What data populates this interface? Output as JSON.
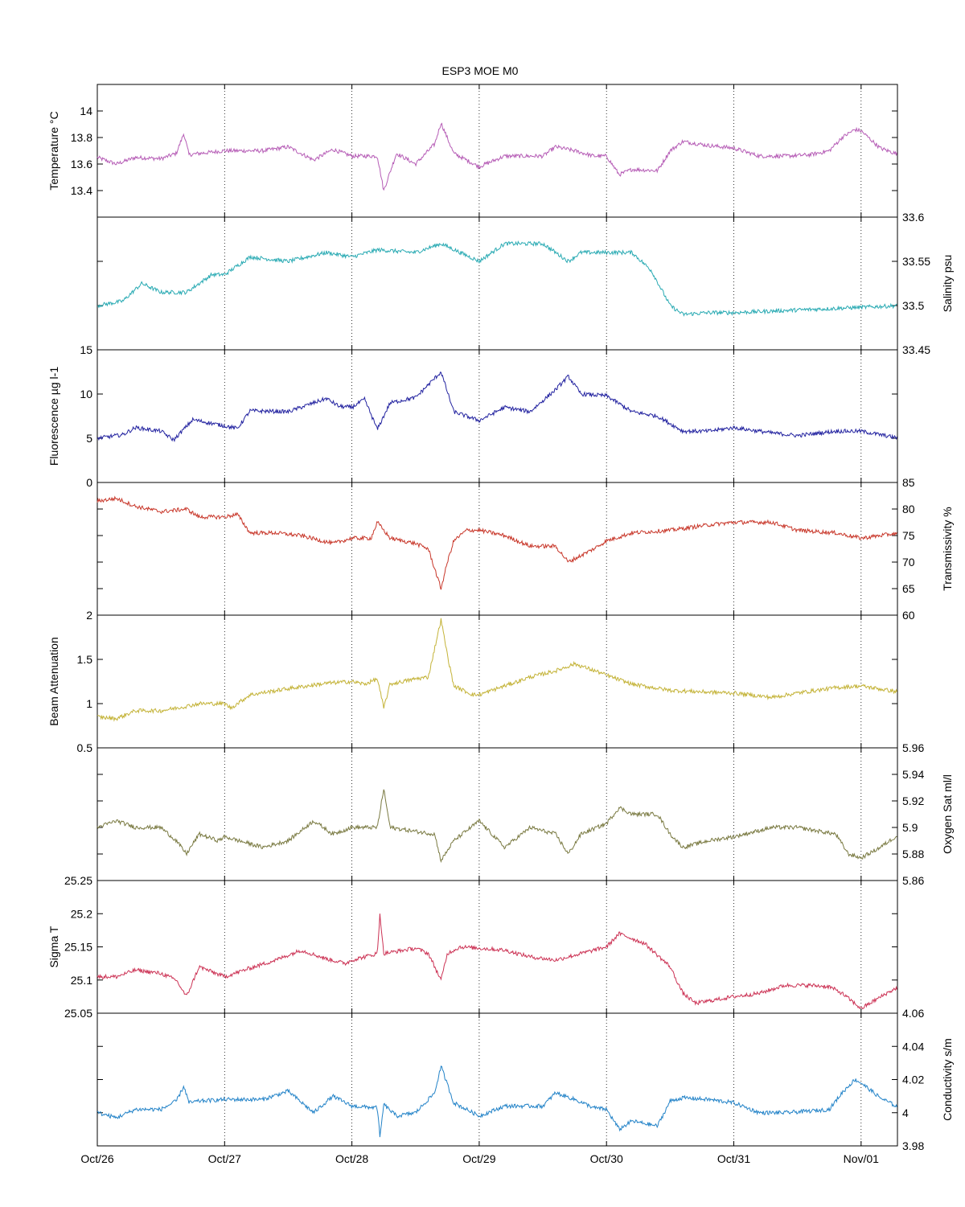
{
  "figure": {
    "title": "ESP3 MOE   M0",
    "x_ticks": [
      "Oct/26",
      "Oct/27",
      "Oct/28",
      "Oct/29",
      "Oct/30",
      "Oct/31",
      "Nov/01"
    ]
  },
  "chart_data": [
    {
      "type": "line",
      "side": "left",
      "ylabel": "Temperature °C",
      "ylim": [
        13.2,
        14.2
      ],
      "yticks": [
        13.4,
        13.6,
        13.8,
        14
      ],
      "ytick_labels": [
        "13.4",
        "13.6",
        "13.8",
        "14"
      ],
      "color": "#b65db6",
      "x_days": [
        0,
        0.15,
        0.3,
        0.5,
        0.62,
        0.68,
        0.72,
        0.8,
        1.0,
        1.3,
        1.5,
        1.7,
        1.85,
        2.0,
        2.2,
        2.25,
        2.35,
        2.5,
        2.65,
        2.7,
        2.8,
        3.0,
        3.2,
        3.4,
        3.5,
        3.6,
        3.75,
        3.9,
        4.0,
        4.1,
        4.2,
        4.4,
        4.5,
        4.6,
        4.8,
        5.0,
        5.2,
        5.4,
        5.6,
        5.75,
        5.85,
        5.95,
        6.0,
        6.15,
        6.3
      ],
      "y": [
        13.65,
        13.6,
        13.65,
        13.64,
        13.68,
        13.83,
        13.67,
        13.68,
        13.7,
        13.7,
        13.73,
        13.63,
        13.71,
        13.66,
        13.66,
        13.4,
        13.68,
        13.6,
        13.75,
        13.91,
        13.68,
        13.58,
        13.66,
        13.66,
        13.66,
        13.73,
        13.7,
        13.66,
        13.66,
        13.52,
        13.56,
        13.55,
        13.7,
        13.77,
        13.74,
        13.72,
        13.66,
        13.66,
        13.67,
        13.7,
        13.8,
        13.86,
        13.85,
        13.72,
        13.67
      ]
    },
    {
      "type": "line",
      "side": "right",
      "ylabel": "Salinity psu",
      "ylim": [
        33.45,
        33.6
      ],
      "yticks": [
        33.45,
        33.5,
        33.55,
        33.6
      ],
      "ytick_labels": [
        "33.45",
        "33.5",
        "33.55",
        "33.6"
      ],
      "color": "#29aab3",
      "x_days": [
        0,
        0.2,
        0.35,
        0.5,
        0.7,
        0.9,
        1.0,
        1.2,
        1.5,
        1.8,
        2.0,
        2.2,
        2.5,
        2.7,
        2.85,
        3.0,
        3.2,
        3.5,
        3.7,
        3.8,
        4.0,
        4.2,
        4.35,
        4.5,
        4.6,
        4.8,
        5.0,
        5.5,
        6.0,
        6.3
      ],
      "y": [
        33.5,
        33.505,
        33.525,
        33.515,
        33.515,
        33.535,
        33.535,
        33.555,
        33.55,
        33.56,
        33.555,
        33.563,
        33.56,
        33.57,
        33.56,
        33.55,
        33.57,
        33.57,
        33.55,
        33.56,
        33.56,
        33.56,
        33.54,
        33.5,
        33.49,
        33.492,
        33.492,
        33.495,
        33.498,
        33.5
      ]
    },
    {
      "type": "line",
      "side": "left",
      "ylabel": "Fluorescence µg l-1",
      "ylim": [
        0,
        15
      ],
      "yticks": [
        0,
        5,
        10,
        15
      ],
      "ytick_labels": [
        "0",
        "5",
        "10",
        "15"
      ],
      "color": "#2323a0",
      "x_days": [
        0,
        0.2,
        0.3,
        0.5,
        0.6,
        0.75,
        1.0,
        1.1,
        1.2,
        1.5,
        1.8,
        1.9,
        2.0,
        2.1,
        2.2,
        2.3,
        2.5,
        2.7,
        2.8,
        3.0,
        3.2,
        3.4,
        3.6,
        3.7,
        3.8,
        4.0,
        4.2,
        4.4,
        4.6,
        4.8,
        5.0,
        5.3,
        5.5,
        5.8,
        6.0,
        6.3
      ],
      "y": [
        5,
        5.4,
        6.2,
        5.8,
        4.8,
        7.1,
        6.4,
        6.1,
        8.1,
        8.0,
        9.5,
        8.6,
        8.5,
        9.4,
        6.0,
        9.0,
        9.6,
        12.5,
        8.0,
        7.0,
        8.5,
        8.0,
        10.5,
        12.0,
        10.0,
        9.8,
        8.0,
        7.5,
        5.8,
        5.8,
        6.2,
        5.6,
        5.3,
        5.8,
        5.8,
        5.0
      ]
    },
    {
      "type": "line",
      "side": "right",
      "ylabel": "Transmissivity %",
      "ylim": [
        60,
        85
      ],
      "yticks": [
        60,
        65,
        70,
        75,
        80,
        85
      ],
      "ytick_labels": [
        "60",
        "65",
        "70",
        "75",
        "80",
        "85"
      ],
      "color": "#c8372a",
      "x_days": [
        0,
        0.15,
        0.3,
        0.5,
        0.7,
        0.8,
        1.0,
        1.1,
        1.2,
        1.4,
        1.6,
        1.85,
        2.0,
        2.15,
        2.2,
        2.3,
        2.5,
        2.6,
        2.7,
        2.75,
        2.8,
        2.9,
        3.0,
        3.2,
        3.4,
        3.6,
        3.7,
        3.9,
        4.0,
        4.2,
        4.5,
        4.8,
        5.0,
        5.3,
        5.5,
        5.8,
        6.0,
        6.3
      ],
      "y": [
        81.5,
        82,
        80.5,
        79.5,
        80,
        78.5,
        78.5,
        79,
        75.5,
        75.5,
        75,
        73.5,
        74.5,
        74.5,
        77.5,
        74.5,
        73.5,
        72.5,
        65,
        70,
        74,
        76,
        76,
        75,
        73,
        73,
        70,
        72.5,
        74,
        75.5,
        76,
        77,
        77.5,
        77.5,
        76,
        75.5,
        74.5,
        75.5
      ]
    },
    {
      "type": "line",
      "side": "left",
      "ylabel": "Beam Attenuation",
      "ylim": [
        0.5,
        2
      ],
      "yticks": [
        0.5,
        1,
        1.5,
        2
      ],
      "ytick_labels": [
        "0.5",
        "1",
        "1.5",
        "2"
      ],
      "color": "#c4b338",
      "x_days": [
        0,
        0.15,
        0.3,
        0.5,
        0.7,
        0.8,
        1.0,
        1.05,
        1.2,
        1.5,
        1.8,
        2.0,
        2.1,
        2.2,
        2.25,
        2.3,
        2.5,
        2.6,
        2.7,
        2.75,
        2.8,
        2.95,
        3.0,
        3.2,
        3.4,
        3.6,
        3.75,
        3.95,
        4.0,
        4.2,
        4.5,
        4.8,
        5.0,
        5.3,
        5.5,
        5.8,
        6.0,
        6.3
      ],
      "y": [
        0.85,
        0.83,
        0.92,
        0.92,
        0.97,
        1.0,
        1.0,
        0.95,
        1.1,
        1.17,
        1.23,
        1.25,
        1.22,
        1.28,
        0.95,
        1.22,
        1.28,
        1.3,
        1.95,
        1.55,
        1.2,
        1.1,
        1.1,
        1.2,
        1.3,
        1.37,
        1.45,
        1.35,
        1.32,
        1.22,
        1.15,
        1.13,
        1.12,
        1.07,
        1.12,
        1.18,
        1.2,
        1.13
      ]
    },
    {
      "type": "line",
      "side": "right",
      "ylabel": "Oxygen Sat ml/l",
      "ylim": [
        5.86,
        5.96
      ],
      "yticks": [
        5.86,
        5.88,
        5.9,
        5.92,
        5.94,
        5.96
      ],
      "ytick_labels": [
        "5.86",
        "5.88",
        "5.9",
        "5.92",
        "5.94",
        "5.96"
      ],
      "color": "#7a7a42",
      "x_days": [
        0,
        0.15,
        0.3,
        0.5,
        0.62,
        0.7,
        0.8,
        0.95,
        1.0,
        1.3,
        1.5,
        1.7,
        1.85,
        2.0,
        2.2,
        2.25,
        2.3,
        2.5,
        2.65,
        2.7,
        2.8,
        3.0,
        3.2,
        3.4,
        3.6,
        3.7,
        3.8,
        4.0,
        4.1,
        4.2,
        4.4,
        4.5,
        4.6,
        4.8,
        5.0,
        5.3,
        5.5,
        5.8,
        5.9,
        6.0,
        6.15,
        6.3
      ],
      "y": [
        5.9,
        5.905,
        5.9,
        5.9,
        5.89,
        5.88,
        5.895,
        5.89,
        5.893,
        5.885,
        5.89,
        5.905,
        5.895,
        5.9,
        5.9,
        5.929,
        5.9,
        5.897,
        5.895,
        5.875,
        5.89,
        5.905,
        5.885,
        5.9,
        5.895,
        5.88,
        5.895,
        5.903,
        5.915,
        5.91,
        5.91,
        5.895,
        5.885,
        5.89,
        5.893,
        5.9,
        5.9,
        5.895,
        5.88,
        5.877,
        5.885,
        5.895
      ]
    },
    {
      "type": "line",
      "side": "left",
      "ylabel": "Sigma T",
      "ylim": [
        25.05,
        25.25
      ],
      "yticks": [
        25.05,
        25.1,
        25.15,
        25.2,
        25.25
      ],
      "ytick_labels": [
        "25.05",
        "25.1",
        "25.15",
        "25.2",
        "25.25"
      ],
      "color": "#cc3355",
      "x_days": [
        0,
        0.15,
        0.3,
        0.5,
        0.62,
        0.7,
        0.8,
        1.0,
        1.2,
        1.4,
        1.6,
        1.8,
        1.95,
        2.0,
        2.2,
        2.22,
        2.25,
        2.5,
        2.6,
        2.7,
        2.75,
        2.85,
        3.0,
        3.2,
        3.4,
        3.6,
        3.8,
        4.0,
        4.1,
        4.3,
        4.5,
        4.6,
        4.7,
        5.0,
        5.2,
        5.4,
        5.6,
        5.75,
        5.85,
        6.0,
        6.2,
        6.3
      ],
      "y": [
        25.105,
        25.105,
        25.115,
        25.11,
        25.1,
        25.075,
        25.12,
        25.105,
        25.118,
        25.13,
        25.145,
        25.132,
        25.125,
        25.13,
        25.14,
        25.2,
        25.14,
        25.148,
        25.14,
        25.1,
        25.14,
        25.15,
        25.148,
        25.145,
        25.135,
        25.13,
        25.14,
        25.15,
        25.17,
        25.155,
        25.12,
        25.08,
        25.065,
        25.075,
        25.08,
        25.092,
        25.092,
        25.09,
        25.08,
        25.057,
        25.08,
        25.09
      ]
    },
    {
      "type": "line",
      "side": "right",
      "ylabel": "Conductivity s/m",
      "ylim": [
        3.98,
        4.06
      ],
      "yticks": [
        3.98,
        4,
        4.02,
        4.04,
        4.06
      ],
      "ytick_labels": [
        "3.98",
        "4",
        "4.02",
        "4.04",
        "4.06"
      ],
      "color": "#2383c8",
      "x_days": [
        0,
        0.15,
        0.3,
        0.5,
        0.62,
        0.68,
        0.72,
        0.8,
        1.0,
        1.3,
        1.5,
        1.7,
        1.85,
        2.0,
        2.2,
        2.22,
        2.25,
        2.35,
        2.5,
        2.65,
        2.7,
        2.8,
        3.0,
        3.2,
        3.4,
        3.5,
        3.6,
        3.75,
        3.9,
        4.0,
        4.1,
        4.2,
        4.4,
        4.5,
        4.6,
        4.8,
        5.0,
        5.2,
        5.4,
        5.6,
        5.75,
        5.85,
        5.95,
        6.0,
        6.15,
        6.3
      ],
      "y": [
        4.0,
        3.997,
        4.002,
        4.002,
        4.007,
        4.016,
        4.006,
        4.007,
        4.008,
        4.008,
        4.013,
        4.0,
        4.01,
        4.004,
        4.003,
        3.985,
        4.005,
        3.998,
        4.0,
        4.012,
        4.028,
        4.006,
        3.998,
        4.004,
        4.004,
        4.004,
        4.012,
        4.008,
        4.003,
        4.002,
        3.99,
        3.995,
        3.992,
        4.007,
        4.009,
        4.008,
        4.006,
        4.0,
        4.0,
        4.001,
        4.002,
        4.012,
        4.02,
        4.018,
        4.009,
        4.003
      ]
    }
  ]
}
